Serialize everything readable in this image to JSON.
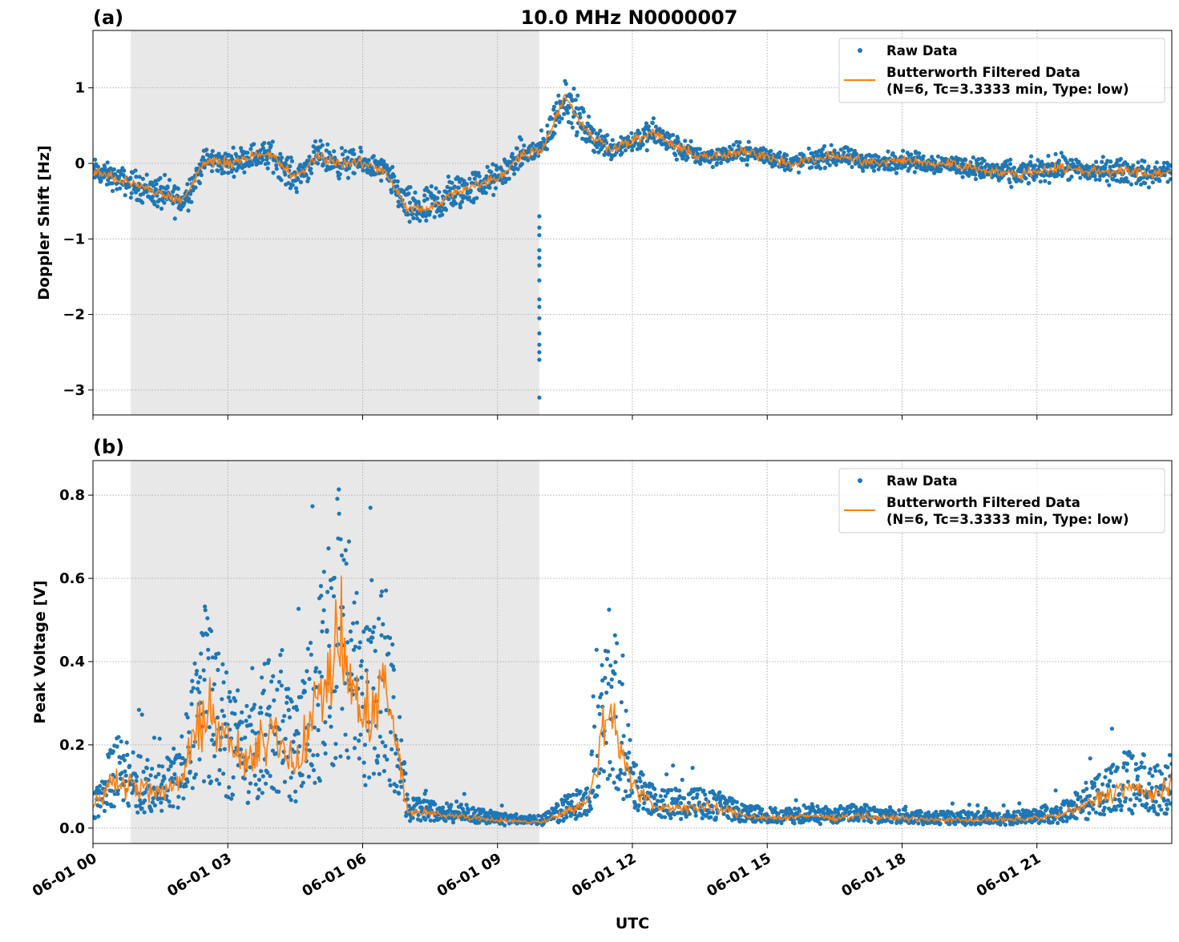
{
  "chart_data": [
    {
      "type": "scatter+line",
      "panel_label": "(a)",
      "title": "10.0 MHz N0000007",
      "xlabel": "",
      "ylabel": "Doppler Shift [Hz]",
      "xlim_hours": [
        0,
        24
      ],
      "ylim": [
        -3.33,
        1.76
      ],
      "yticks": [
        1,
        0,
        -1,
        -2,
        -3
      ],
      "ytick_labels": [
        "1",
        "0",
        "−1",
        "−2",
        "−3"
      ],
      "grid": true,
      "legend": "top-right",
      "night_shading_hours": [
        0.84,
        9.93
      ],
      "series": [
        {
          "name": "Raw Data",
          "style": "points",
          "color": "#1f77b4",
          "spread_hz": [
            0.25,
            0.25,
            0.3,
            0.35,
            0.35,
            0.25,
            0.25,
            0.25,
            0.3,
            0.3,
            0.3,
            0.3,
            0.25,
            0.25,
            0.4,
            0.45,
            0.4,
            0.35,
            0.3,
            0.3,
            0.3,
            0.45,
            0.35,
            0.25,
            0.25,
            0.3,
            0.25,
            0.2,
            0.2,
            0.2,
            0.2,
            0.2,
            0.2,
            0.2,
            0.2,
            0.2,
            0.2,
            0.2,
            0.2,
            0.2,
            0.25,
            0.25,
            0.25,
            0.25,
            0.25,
            0.25,
            0.25,
            0.25,
            0.25
          ],
          "outliers": {
            "hour": 9.93,
            "values": [
              -3.1,
              -2.6,
              -2.5,
              -2.4,
              -2.25,
              -2.05,
              -1.9,
              -1.8,
              -1.55,
              -1.35,
              -1.25,
              -1.15,
              -0.95,
              -0.85,
              -0.7
            ]
          }
        },
        {
          "name": "Butterworth Filtered Data\n(N=6, Tc=3.3333 min, Type: low)",
          "style": "line",
          "color": "#ff7f0e",
          "x_hours_step": 0.5,
          "values": [
            -0.1,
            -0.2,
            -0.3,
            -0.4,
            -0.5,
            0.05,
            0.0,
            0.1,
            0.1,
            -0.2,
            0.1,
            0.0,
            0.0,
            -0.1,
            -0.6,
            -0.6,
            -0.4,
            -0.3,
            -0.2,
            0.1,
            0.2,
            0.9,
            0.4,
            0.2,
            0.3,
            0.4,
            0.2,
            0.1,
            0.1,
            0.15,
            0.1,
            0.0,
            0.05,
            0.1,
            0.05,
            0.0,
            0.05,
            0.0,
            0.0,
            -0.05,
            -0.1,
            -0.15,
            -0.1,
            -0.05,
            -0.1,
            -0.1,
            -0.1,
            -0.15,
            -0.1
          ]
        }
      ]
    },
    {
      "type": "scatter+line",
      "panel_label": "(b)",
      "title": "",
      "xlabel": "UTC",
      "ylabel": "Peak Voltage [V]",
      "xlim_hours": [
        0,
        24
      ],
      "ylim": [
        -0.037,
        0.883
      ],
      "yticks": [
        0.8,
        0.6,
        0.4,
        0.2,
        0.0
      ],
      "ytick_labels": [
        "0.8",
        "0.6",
        "0.4",
        "0.2",
        "0.0"
      ],
      "xtick_labels": [
        "06-01 00",
        "06-01 03",
        "06-01 06",
        "06-01 09",
        "06-01 12",
        "06-01 15",
        "06-01 18",
        "06-01 21"
      ],
      "grid": true,
      "legend": "top-right",
      "night_shading_hours": [
        0.84,
        9.93
      ],
      "series": [
        {
          "name": "Raw Data",
          "style": "points",
          "color": "#1f77b4"
        },
        {
          "name": "Butterworth Filtered Data\n(N=6, Tc=3.3333 min, Type: low)",
          "style": "line",
          "color": "#ff7f0e",
          "x_hours_step": 0.5,
          "values": [
            0.05,
            0.12,
            0.1,
            0.08,
            0.12,
            0.3,
            0.2,
            0.15,
            0.25,
            0.15,
            0.3,
            0.45,
            0.25,
            0.35,
            0.04,
            0.035,
            0.03,
            0.025,
            0.02,
            0.015,
            0.015,
            0.04,
            0.06,
            0.3,
            0.1,
            0.05,
            0.05,
            0.05,
            0.045,
            0.03,
            0.025,
            0.025,
            0.03,
            0.025,
            0.03,
            0.025,
            0.025,
            0.02,
            0.02,
            0.02,
            0.02,
            0.02,
            0.025,
            0.03,
            0.05,
            0.08,
            0.1,
            0.08,
            0.1
          ]
        }
      ]
    }
  ],
  "legend": {
    "raw": "Raw Data",
    "filt1": "Butterworth Filtered Data",
    "filt2": "(N=6, Tc=3.3333 min, Type: low)"
  }
}
